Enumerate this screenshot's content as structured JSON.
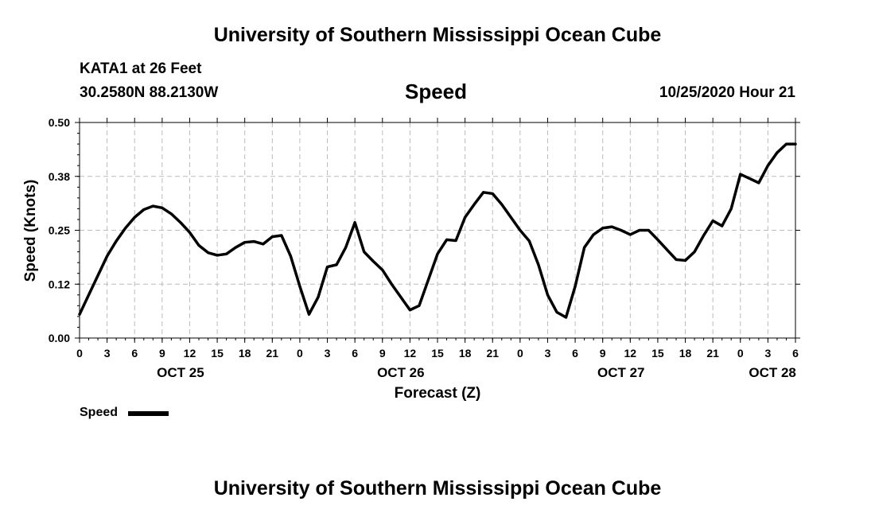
{
  "header": {
    "title_top": "University of Southern Mississippi Ocean Cube",
    "station": "KATA1 at 26 Feet",
    "coords": "30.2580N 88.2130W",
    "variable": "Speed",
    "run_time": "10/25/2020 Hour 21"
  },
  "footer": {
    "title_bottom": "University of Southern Mississippi Ocean Cube"
  },
  "chart_data": {
    "type": "line",
    "xlabel": "Forecast (Z)",
    "ylabel": "Speed (Knots)",
    "ylim": [
      0,
      0.5
    ],
    "xlim": [
      0,
      78
    ],
    "yticks": [
      0.0,
      0.125,
      0.25,
      0.375,
      0.5
    ],
    "ytick_labels": [
      "0.00",
      "0.12",
      "0.25",
      "0.38",
      "0.50"
    ],
    "xticks": [
      0,
      3,
      6,
      9,
      12,
      15,
      18,
      21,
      24,
      27,
      30,
      33,
      36,
      39,
      42,
      45,
      48,
      51,
      54,
      57,
      60,
      63,
      66,
      69,
      72,
      75,
      78
    ],
    "xtick_labels": [
      "0",
      "3",
      "6",
      "9",
      "12",
      "15",
      "18",
      "21",
      "0",
      "3",
      "6",
      "9",
      "12",
      "15",
      "18",
      "21",
      "0",
      "3",
      "6",
      "9",
      "12",
      "15",
      "18",
      "21",
      "0",
      "3",
      "6"
    ],
    "date_labels": [
      {
        "hours": 11,
        "label": "OCT 25"
      },
      {
        "hours": 35,
        "label": "OCT 26"
      },
      {
        "hours": 59,
        "label": "OCT 27"
      },
      {
        "hours": 75.5,
        "label": "OCT 28"
      }
    ],
    "grid": true,
    "legend_position": "bottom-left",
    "color": "#000000",
    "series": [
      {
        "name": "Speed",
        "x": [
          0,
          1,
          2,
          3,
          4,
          5,
          6,
          7,
          8,
          9,
          10,
          11,
          12,
          13,
          14,
          15,
          16,
          17,
          18,
          19,
          20,
          21,
          22,
          23,
          24,
          25,
          26,
          27,
          28,
          29,
          30,
          31,
          32,
          33,
          34,
          35,
          36,
          37,
          38,
          39,
          40,
          41,
          42,
          43,
          44,
          45,
          46,
          47,
          48,
          49,
          50,
          51,
          52,
          53,
          54,
          55,
          56,
          57,
          58,
          59,
          60,
          61,
          62,
          63,
          64,
          65,
          66,
          67,
          68,
          69,
          70,
          71,
          72,
          73,
          74,
          75,
          76,
          77,
          78
        ],
        "values": [
          0.055,
          0.1,
          0.145,
          0.19,
          0.225,
          0.255,
          0.28,
          0.298,
          0.306,
          0.302,
          0.288,
          0.268,
          0.245,
          0.215,
          0.198,
          0.192,
          0.195,
          0.21,
          0.222,
          0.224,
          0.218,
          0.235,
          0.238,
          0.19,
          0.12,
          0.055,
          0.095,
          0.165,
          0.17,
          0.21,
          0.268,
          0.2,
          0.178,
          0.158,
          0.125,
          0.095,
          0.065,
          0.075,
          0.135,
          0.195,
          0.228,
          0.226,
          0.28,
          0.31,
          0.338,
          0.335,
          0.31,
          0.28,
          0.25,
          0.225,
          0.17,
          0.1,
          0.06,
          0.048,
          0.12,
          0.21,
          0.24,
          0.255,
          0.258,
          0.25,
          0.24,
          0.25,
          0.25,
          0.228,
          0.205,
          0.182,
          0.18,
          0.2,
          0.238,
          0.272,
          0.26,
          0.3,
          0.38,
          0.37,
          0.36,
          0.4,
          0.43,
          0.45,
          0.45
        ]
      }
    ]
  }
}
